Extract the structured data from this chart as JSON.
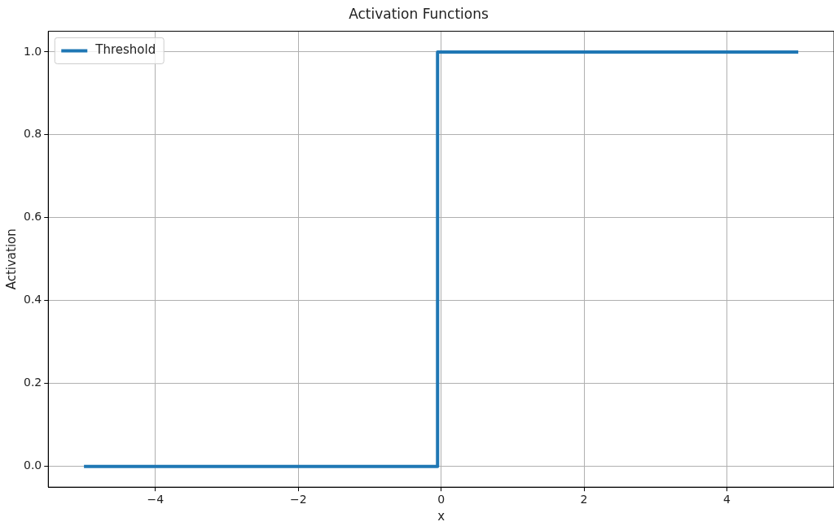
{
  "chart_data": {
    "type": "line",
    "title": "Activation Functions",
    "xlabel": "x",
    "ylabel": "Activation",
    "series": [
      {
        "name": "Threshold",
        "color": "#1f77b4",
        "x": [
          -5,
          -0.05,
          -0.05,
          5
        ],
        "values": [
          0,
          0,
          1,
          1
        ]
      }
    ],
    "xlim": [
      -5.5,
      5.5
    ],
    "xticks": [
      {
        "value": -4,
        "label": "−4"
      },
      {
        "value": -2,
        "label": "−2"
      },
      0,
      2,
      4
    ],
    "ylim": [
      -0.05,
      1.05
    ],
    "yticks": [
      {
        "value": 0,
        "label": "0.0"
      },
      {
        "value": 0.2,
        "label": "0.2"
      },
      {
        "value": 0.4,
        "label": "0.4"
      },
      {
        "value": 0.6,
        "label": "0.6"
      },
      {
        "value": 0.8,
        "label": "0.8"
      },
      {
        "value": 1,
        "label": "1.0"
      }
    ],
    "grid": true,
    "legend": "top left",
    "marker": "none",
    "line_style": "solid"
  }
}
